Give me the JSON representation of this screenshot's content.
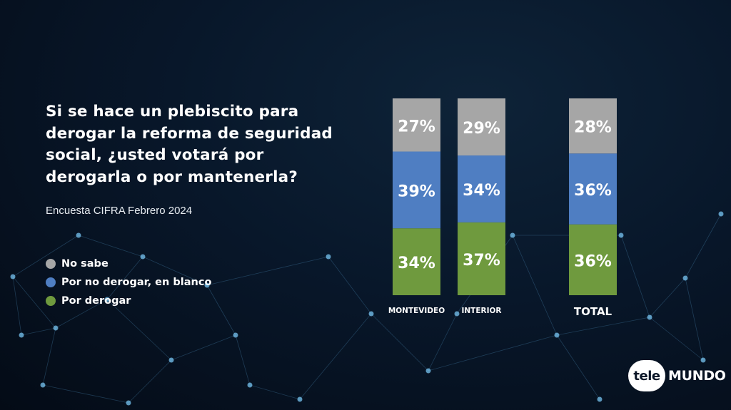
{
  "question_lines": [
    "Si se hace un plebiscito para",
    "derogar la reforma de seguridad",
    "social, ¿usted votará por",
    "derogarla o por mantenerla?"
  ],
  "source": "Encuesta CIFRA Febrero 2024",
  "legend": [
    {
      "label": "No sabe",
      "color": "#a6a6a6"
    },
    {
      "label": "Por no derogar, en blanco",
      "color": "#4f7ec2"
    },
    {
      "label": "Por derogar",
      "color": "#6f9a3e"
    }
  ],
  "chart_data": {
    "type": "bar",
    "stacked": true,
    "categories": [
      "MONTEVIDEO",
      "INTERIOR",
      "TOTAL"
    ],
    "series": [
      {
        "name": "Por derogar",
        "color": "#6f9a3e",
        "values": [
          34,
          37,
          36
        ],
        "labels": [
          "34%",
          "37%",
          "36%"
        ]
      },
      {
        "name": "Por no derogar, en blanco",
        "color": "#4f7ec2",
        "values": [
          39,
          34,
          36
        ],
        "labels": [
          "39%",
          "34%",
          "36%"
        ]
      },
      {
        "name": "No sabe",
        "color": "#a6a6a6",
        "values": [
          27,
          29,
          28
        ],
        "labels": [
          "27%",
          "29%",
          "28%"
        ]
      }
    ],
    "ylim": [
      0,
      100
    ]
  },
  "logo": {
    "left": "tele",
    "right": "MUNDO"
  }
}
